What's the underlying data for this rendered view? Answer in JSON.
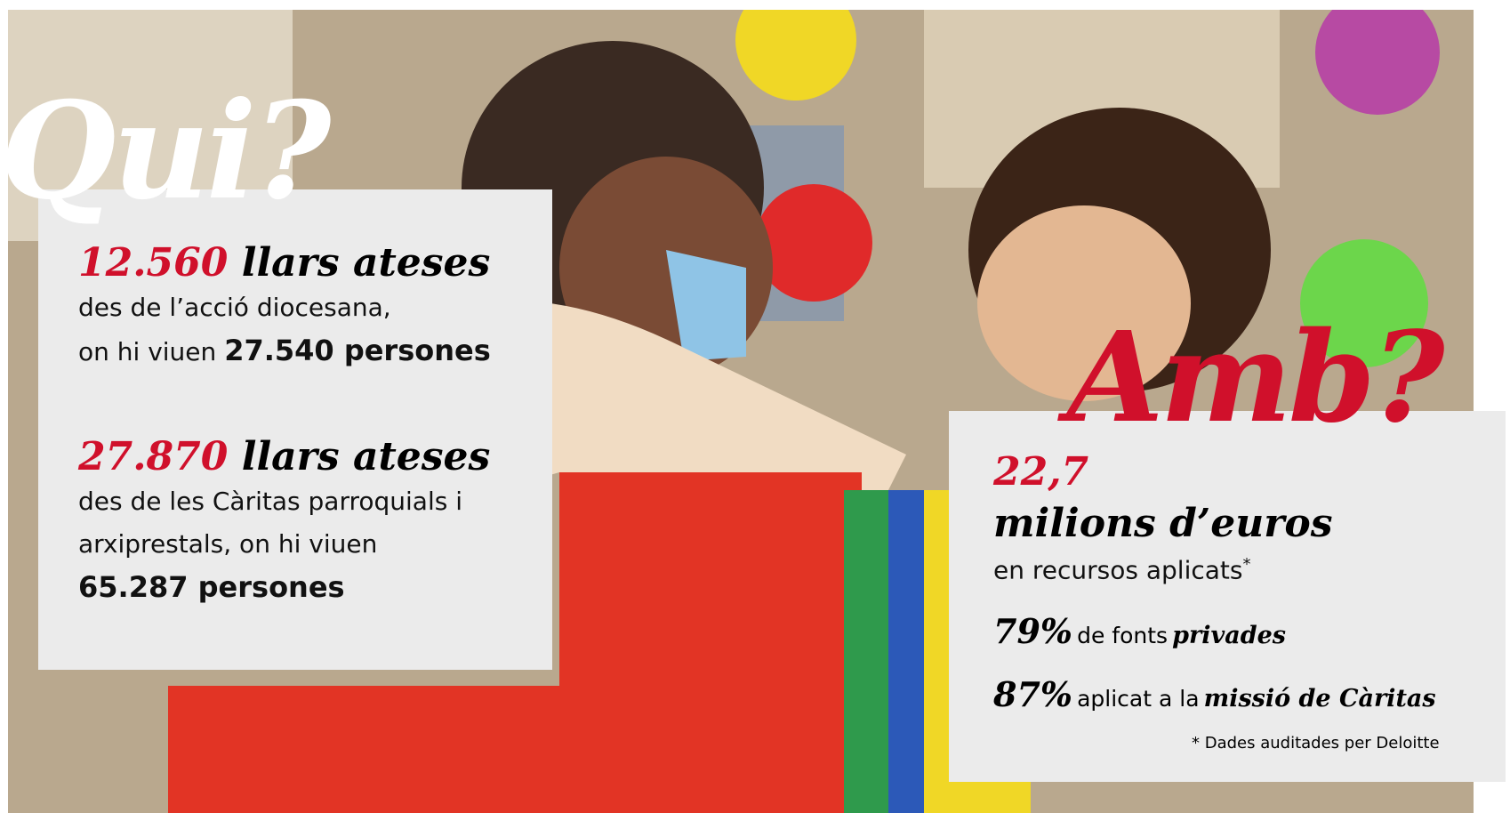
{
  "qui": {
    "heading": "Qui?",
    "blocks": [
      {
        "number": "12.560",
        "title": "llars ateses",
        "line_1": "des de l’acció diocesana,",
        "line_2": "on hi viuen",
        "people": "27.540 persones"
      },
      {
        "number": "27.870",
        "title": "llars ateses",
        "line_1": "des de les Càritas parroquials i",
        "line_2": "arxiprestals, on hi viuen",
        "people": "65.287 persones"
      }
    ]
  },
  "amb": {
    "heading": "Amb?",
    "amount": "22,7",
    "unit": "milions d’euros",
    "text": "en recursos aplicats",
    "asterisk": "*",
    "stats": [
      {
        "value": "79%",
        "text": "de fonts",
        "emphasis": "privades"
      },
      {
        "value": "87%",
        "text": "aplicat a la",
        "emphasis": "missió de Càritas"
      }
    ],
    "footnote": "* Dades auditades per Deloitte"
  }
}
